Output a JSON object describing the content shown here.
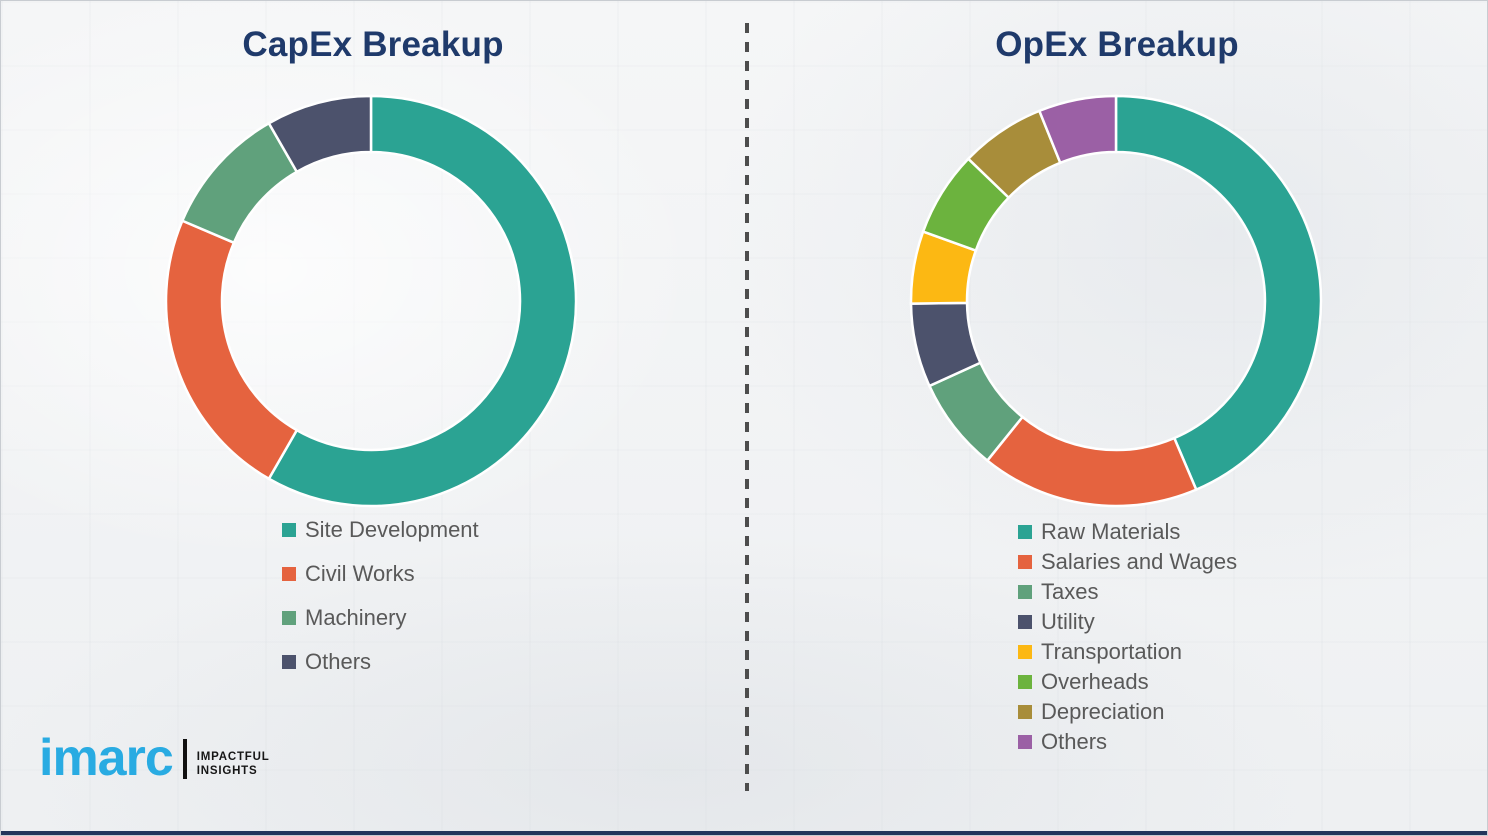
{
  "page": {
    "background_color": "#f2f3f5",
    "divider_color": "#4d4d4d",
    "border_color": "#c8ccd1",
    "bottom_bar_color": "#22355c",
    "legend_text_color": "#595959"
  },
  "chart_data": [
    {
      "type": "pie",
      "variant": "donut",
      "title": "CapEx Breakup",
      "title_color": "#1f3a6b",
      "legend_position": "below-chart-left",
      "start_angle_deg": 0,
      "clockwise": true,
      "unit": "percent-estimated",
      "categories": [
        "Site Development",
        "Civil Works",
        "Machinery",
        "Others"
      ],
      "values": [
        58.3,
        23.1,
        10.3,
        8.3
      ],
      "colors": [
        "#2ba393",
        "#e5633f",
        "#60a17c",
        "#4c526c"
      ]
    },
    {
      "type": "pie",
      "variant": "donut",
      "title": "OpEx Breakup",
      "title_color": "#1f3a6b",
      "legend_position": "below-chart-left",
      "start_angle_deg": 0,
      "clockwise": true,
      "unit": "percent-estimated",
      "categories": [
        "Raw Materials",
        "Salaries and Wages",
        "Taxes",
        "Utility",
        "Transportation",
        "Overheads",
        "Depreciation",
        "Others"
      ],
      "values": [
        43.6,
        17.2,
        7.4,
        6.6,
        5.7,
        6.7,
        6.7,
        6.1
      ],
      "colors": [
        "#2ba393",
        "#e5633f",
        "#60a17c",
        "#4c526c",
        "#fcb813",
        "#6cb33e",
        "#a88d3a",
        "#9b60a5"
      ]
    }
  ],
  "logo": {
    "brand": "imarc",
    "brand_color": "#29abe2",
    "tagline_line1": "IMPACTFUL",
    "tagline_line2": "INSIGHTS",
    "tagline_color": "#161616"
  }
}
